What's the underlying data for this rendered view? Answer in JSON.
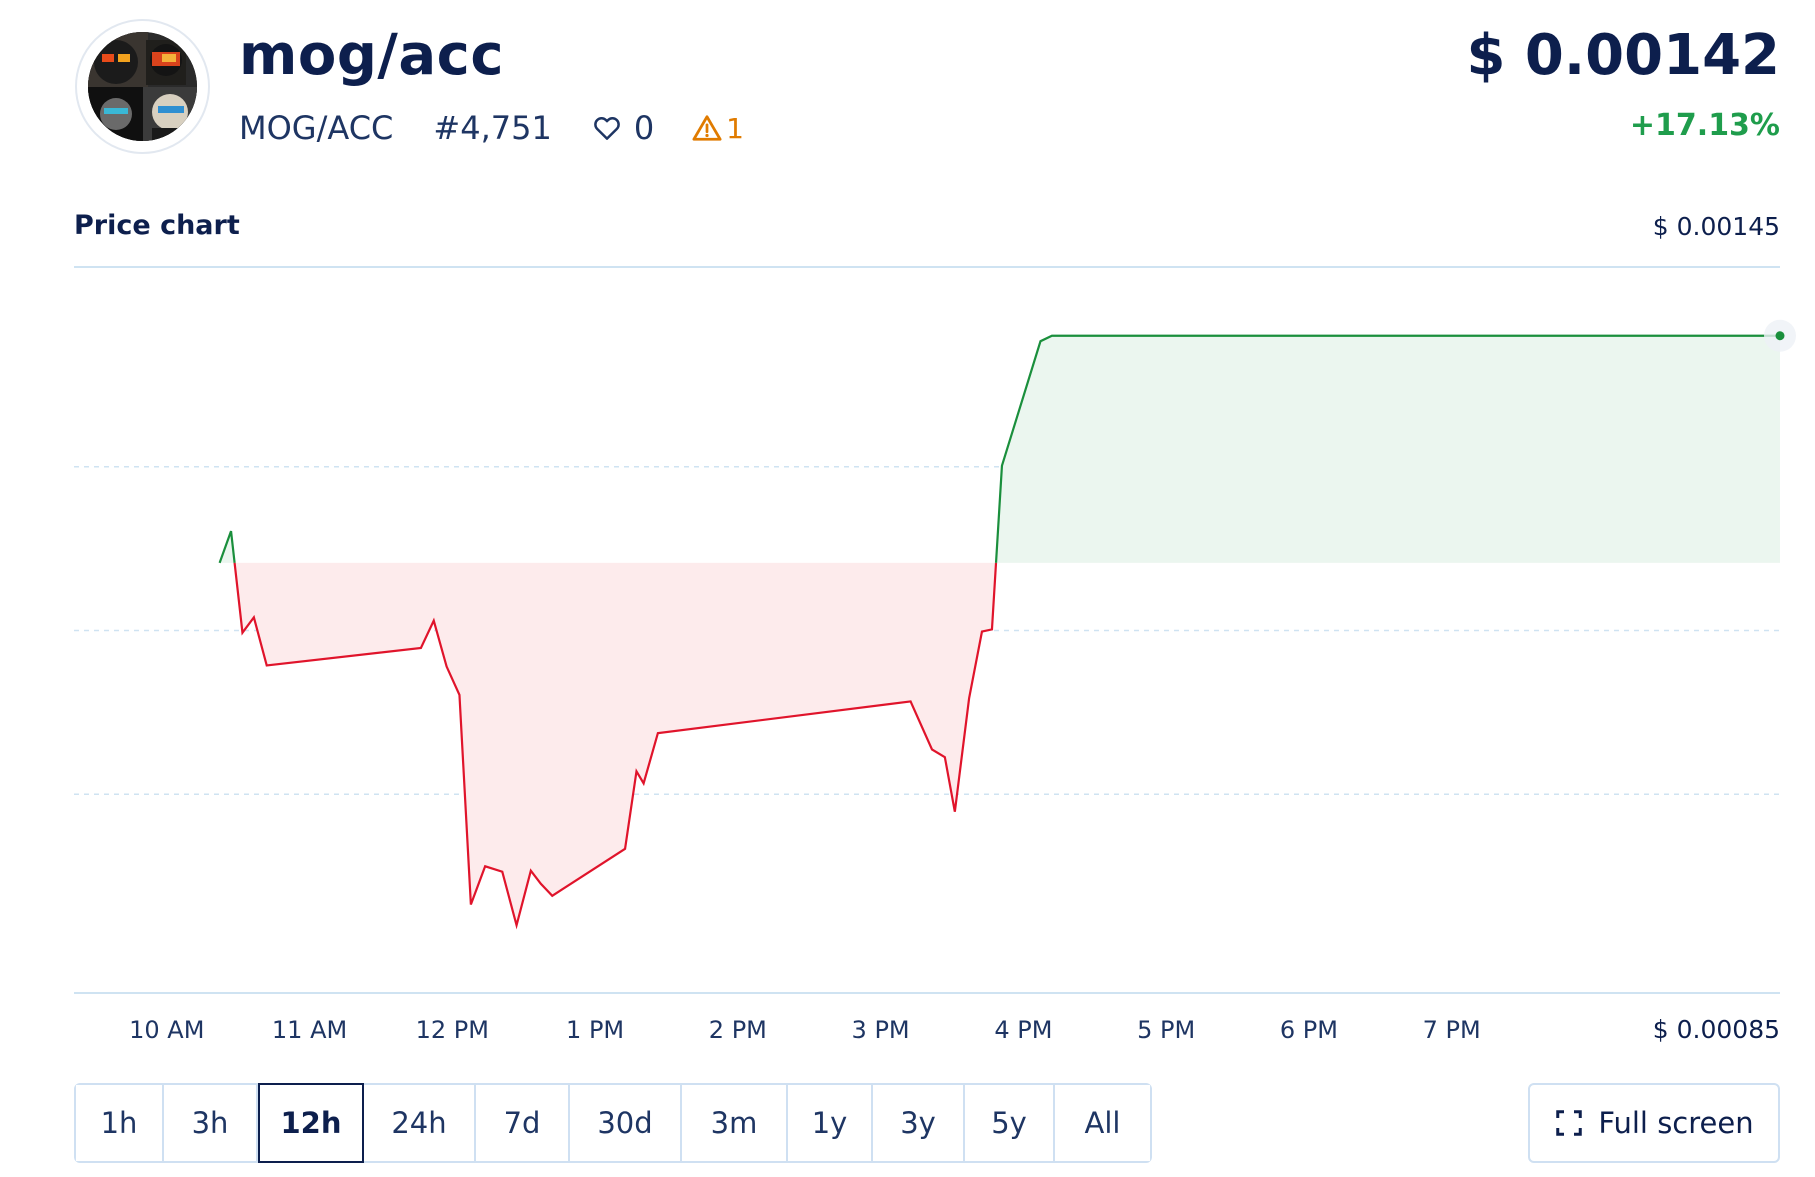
{
  "token": {
    "name": "mog/acc",
    "pair": "MOG/ACC",
    "rank": "#4,751",
    "likes": "0",
    "warnings": "1",
    "price": "$ 0.00142",
    "change": "+17.13%"
  },
  "chart_section": {
    "title": "Price chart",
    "max_label": "$ 0.00145",
    "min_label": "$ 0.00085",
    "fullscreen_label": "Full screen"
  },
  "ranges": [
    {
      "label": "1h"
    },
    {
      "label": "3h"
    },
    {
      "label": "12h",
      "active": true
    },
    {
      "label": "24h"
    },
    {
      "label": "7d"
    },
    {
      "label": "30d"
    },
    {
      "label": "3m"
    },
    {
      "label": "1y"
    },
    {
      "label": "3y"
    },
    {
      "label": "5y"
    },
    {
      "label": "All"
    }
  ],
  "colors": {
    "up": "#1a8f3c",
    "down": "#e0142b",
    "up_fill": "#ebf6ef",
    "down_fill": "#fdebec",
    "grid": "#cfe3f2",
    "text": "#0d1f4d"
  },
  "chart_data": {
    "type": "area",
    "ylim": [
      0.00085,
      0.00145
    ],
    "baseline": 0.001212,
    "x_tick_labels": [
      "10 AM",
      "11 AM",
      "12 PM",
      "1 PM",
      "2 PM",
      "3 PM",
      "4 PM",
      "5 PM",
      "6 PM",
      "7 PM"
    ],
    "x_ticks_hours": [
      10,
      11,
      12,
      13,
      14,
      15,
      16,
      17,
      18,
      19
    ],
    "xlim_hours": [
      9.35,
      21.3
    ],
    "grid": true,
    "series": [
      {
        "hour": [
          10.37,
          10.45,
          10.53,
          10.61,
          10.7,
          11.78,
          11.87,
          11.96,
          12.05,
          12.13,
          12.23,
          12.35,
          12.45,
          12.55,
          12.62,
          12.7,
          13.21,
          13.29,
          13.34,
          13.44,
          15.21,
          15.36,
          15.45,
          15.52,
          15.62,
          15.71,
          15.78,
          15.85,
          16.12,
          16.2,
          21.3
        ],
        "price": [
          0.001212,
          0.001241,
          0.001148,
          0.001162,
          0.001118,
          0.001134,
          0.001159,
          0.001117,
          0.001091,
          0.000899,
          0.000934,
          0.000929,
          0.00088,
          0.00093,
          0.000918,
          0.000907,
          0.00095,
          0.001021,
          0.00101,
          0.001056,
          0.001085,
          0.001041,
          0.001034,
          0.000984,
          0.001088,
          0.001149,
          0.001151,
          0.001301,
          0.001415,
          0.00142,
          0.00142
        ]
      }
    ]
  }
}
